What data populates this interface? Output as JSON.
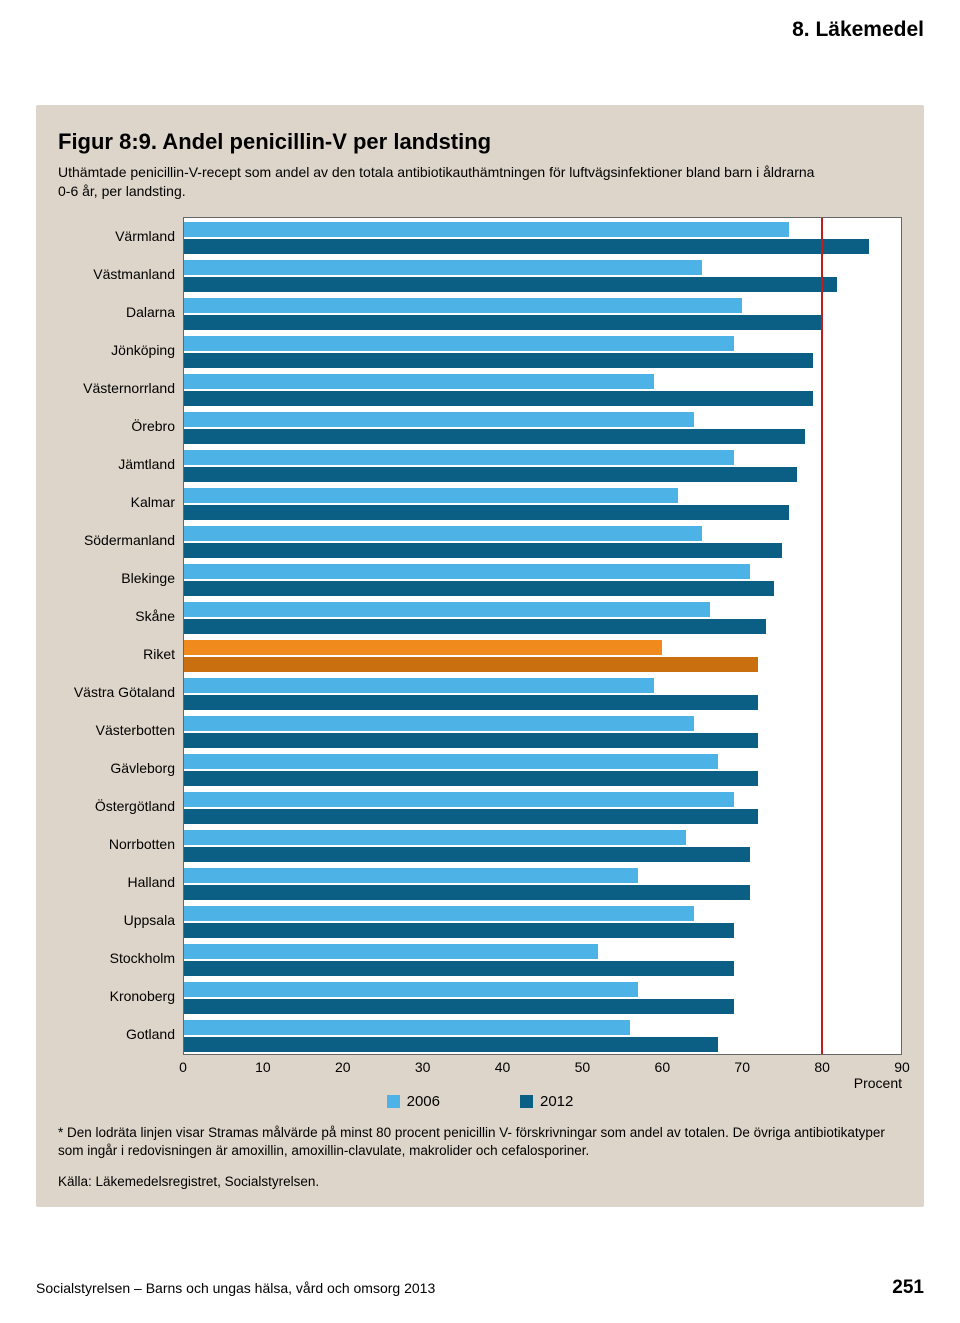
{
  "header": {
    "section_label": "8. Läkemedel"
  },
  "figure": {
    "title": "Figur 8:9. Andel penicillin-V per landsting",
    "subtitle": "Uthämtade penicillin-V-recept som andel av den totala antibiotikauthämtningen för luftvägsinfektioner bland barn i åldrarna 0-6 år, per landsting.",
    "footnote": "* Den lodräta linjen visar Stramas målvärde på minst 80 procent penicillin V- förskrivningar som andel av totalen. De övriga antibiotikatyper som ingår i redovisningen är amoxillin, amoxillin-clavulate, makrolider och cefalosporiner.",
    "source": "Källa: Läkemedelsregistret, Socialstyrelsen."
  },
  "chart": {
    "type": "grouped-horizontal-bar",
    "x_min": 0,
    "x_max": 90,
    "x_ticks": [
      0,
      10,
      20,
      30,
      40,
      50,
      60,
      70,
      80,
      90
    ],
    "x_unit_label": "Procent",
    "target_value": 80,
    "target_line_color": "#c21d1d",
    "background_color": "#ffffff",
    "card_background": "#ddd5c9",
    "series": [
      {
        "key": "2006",
        "label": "2006",
        "color": "#4db3e6"
      },
      {
        "key": "2012",
        "label": "2012",
        "color": "#0b5f84"
      }
    ],
    "highlight_colors": {
      "2006": "#f08a1d",
      "2012": "#c96f0f"
    },
    "categories": [
      {
        "label": "Värmland",
        "v2006": 76,
        "v2012": 86,
        "highlight": false
      },
      {
        "label": "Västmanland",
        "v2006": 65,
        "v2012": 82,
        "highlight": false
      },
      {
        "label": "Dalarna",
        "v2006": 70,
        "v2012": 80,
        "highlight": false
      },
      {
        "label": "Jönköping",
        "v2006": 69,
        "v2012": 79,
        "highlight": false
      },
      {
        "label": "Västernorrland",
        "v2006": 59,
        "v2012": 79,
        "highlight": false
      },
      {
        "label": "Örebro",
        "v2006": 64,
        "v2012": 78,
        "highlight": false
      },
      {
        "label": "Jämtland",
        "v2006": 69,
        "v2012": 77,
        "highlight": false
      },
      {
        "label": "Kalmar",
        "v2006": 62,
        "v2012": 76,
        "highlight": false
      },
      {
        "label": "Södermanland",
        "v2006": 65,
        "v2012": 75,
        "highlight": false
      },
      {
        "label": "Blekinge",
        "v2006": 71,
        "v2012": 74,
        "highlight": false
      },
      {
        "label": "Skåne",
        "v2006": 66,
        "v2012": 73,
        "highlight": false
      },
      {
        "label": "Riket",
        "v2006": 60,
        "v2012": 72,
        "highlight": true
      },
      {
        "label": "Västra Götaland",
        "v2006": 59,
        "v2012": 72,
        "highlight": false
      },
      {
        "label": "Västerbotten",
        "v2006": 64,
        "v2012": 72,
        "highlight": false
      },
      {
        "label": "Gävleborg",
        "v2006": 67,
        "v2012": 72,
        "highlight": false
      },
      {
        "label": "Östergötland",
        "v2006": 69,
        "v2012": 72,
        "highlight": false
      },
      {
        "label": "Norrbotten",
        "v2006": 63,
        "v2012": 71,
        "highlight": false
      },
      {
        "label": "Halland",
        "v2006": 57,
        "v2012": 71,
        "highlight": false
      },
      {
        "label": "Uppsala",
        "v2006": 64,
        "v2012": 69,
        "highlight": false
      },
      {
        "label": "Stockholm",
        "v2006": 52,
        "v2012": 69,
        "highlight": false
      },
      {
        "label": "Kronoberg",
        "v2006": 57,
        "v2012": 69,
        "highlight": false
      },
      {
        "label": "Gotland",
        "v2006": 56,
        "v2012": 67,
        "highlight": false
      }
    ]
  },
  "footer": {
    "left": "Socialstyrelsen – Barns och ungas hälsa, vård och omsorg 2013",
    "page": "251"
  }
}
